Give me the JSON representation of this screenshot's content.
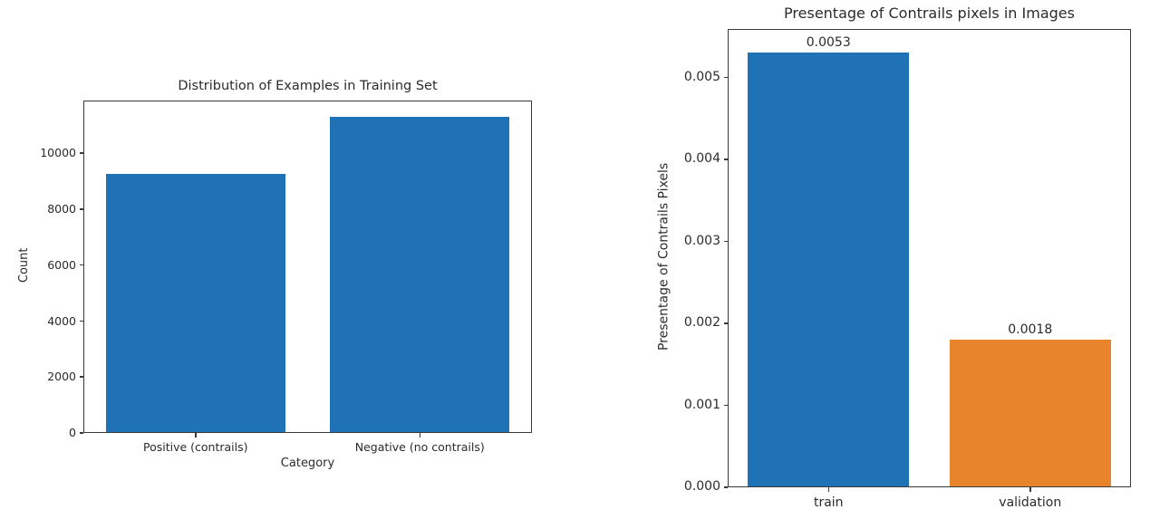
{
  "canvas": {
    "background": "#ffffff",
    "text_color": "#2b2b2b",
    "spine_color": "#3a3a3a"
  },
  "chart_data": [
    {
      "type": "bar",
      "title": "Distribution of Examples in Training Set",
      "xlabel": "Category",
      "ylabel": "Count",
      "categories": [
        "Positive (contrails)",
        "Negative (no contrails)"
      ],
      "values": [
        9250,
        11300
      ],
      "bar_colors": [
        "#1f72b6",
        "#1f72b6"
      ],
      "bar_value_labels": [],
      "ytick_labels": [
        "0",
        "2000",
        "4000",
        "6000",
        "8000",
        "10000"
      ],
      "ytick_values": [
        0,
        2000,
        4000,
        6000,
        8000,
        10000
      ],
      "ylim": [
        0,
        11880
      ],
      "grid": false,
      "legend": "none"
    },
    {
      "type": "bar",
      "title": "Presentage of Contrails pixels in Images",
      "xlabel": "",
      "ylabel": "Presentage of Contrails Pixels",
      "categories": [
        "train",
        "validation"
      ],
      "values": [
        0.0053,
        0.0018
      ],
      "bar_colors": [
        "#1f72b6",
        "#e8842c"
      ],
      "bar_value_labels": [
        "0.0053",
        "0.0018"
      ],
      "ytick_labels": [
        "0.000",
        "0.001",
        "0.002",
        "0.003",
        "0.004",
        "0.005"
      ],
      "ytick_values": [
        0,
        0.001,
        0.002,
        0.003,
        0.004,
        0.005
      ],
      "ylim": [
        0,
        0.00559
      ],
      "grid": false,
      "legend": "none"
    }
  ]
}
